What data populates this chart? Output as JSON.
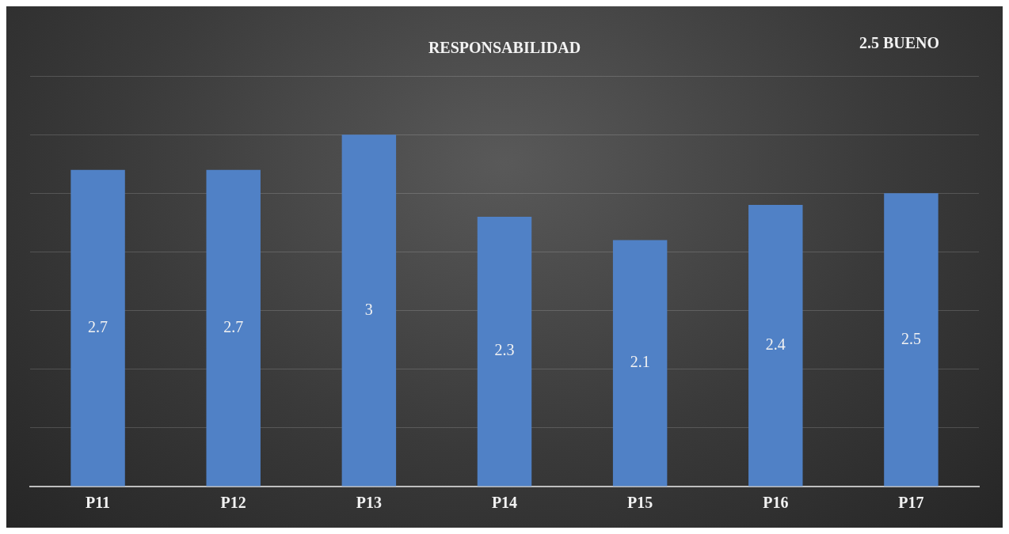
{
  "chart_data": {
    "type": "bar",
    "title": "RESPONSABILIDAD",
    "annotations": [
      "2.5 BUENO"
    ],
    "categories": [
      "P11",
      "P12",
      "P13",
      "P14",
      "P15",
      "P16",
      "P17"
    ],
    "values": [
      2.7,
      2.7,
      3,
      2.3,
      2.1,
      2.4,
      2.5
    ],
    "color": "#5081c6",
    "tick_labels": "x",
    "grid": "y",
    "data_labels": true,
    "legend": false
  }
}
